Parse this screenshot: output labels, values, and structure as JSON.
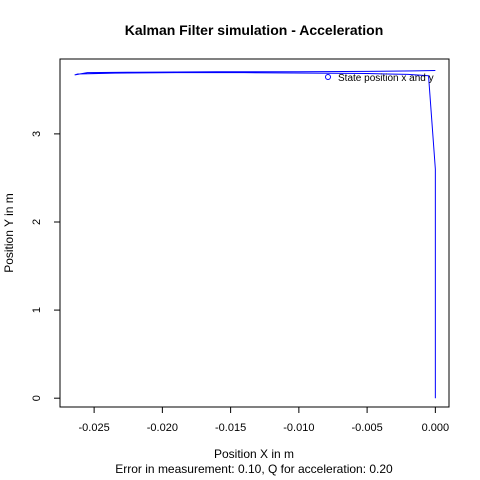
{
  "chart_data": {
    "type": "line",
    "title": "Kalman Filter simulation - Acceleration",
    "xlabel": "Position X in m",
    "ylabel": "Position Y in m",
    "subtitle": "Error in measurement: 0.10, Q for acceleration: 0.20",
    "xlim": [
      -0.0275,
      0.001
    ],
    "ylim": [
      -0.1,
      3.85
    ],
    "x_ticks": [
      -0.025,
      -0.02,
      -0.015,
      -0.01,
      -0.005,
      0.0
    ],
    "x_tick_labels": [
      "-0.025",
      "-0.020",
      "-0.015",
      "-0.010",
      "-0.005",
      "0.000"
    ],
    "y_ticks": [
      0,
      1,
      2,
      3
    ],
    "y_tick_labels": [
      "0",
      "1",
      "2",
      "3"
    ],
    "grid": false,
    "legend": {
      "position": "top-right",
      "entries": [
        {
          "label": "State position x and y",
          "marker": "circle-open",
          "color": "#0000ff"
        }
      ]
    },
    "series": [
      {
        "name": "State position x and y",
        "color": "#0000ff",
        "x": [
          0.0,
          0.0,
          0.0,
          -0.0005,
          -0.002,
          -0.005,
          -0.009,
          -0.014,
          -0.019,
          -0.0235,
          -0.0262,
          -0.0264,
          -0.0255,
          -0.022,
          -0.016,
          -0.01,
          -0.005,
          -0.0015,
          0.0
        ],
        "y": [
          0.0,
          1.2,
          2.6,
          3.66,
          3.675,
          3.685,
          3.69,
          3.695,
          3.695,
          3.69,
          3.68,
          3.67,
          3.695,
          3.7,
          3.705,
          3.705,
          3.71,
          3.715,
          3.72
        ]
      }
    ]
  }
}
